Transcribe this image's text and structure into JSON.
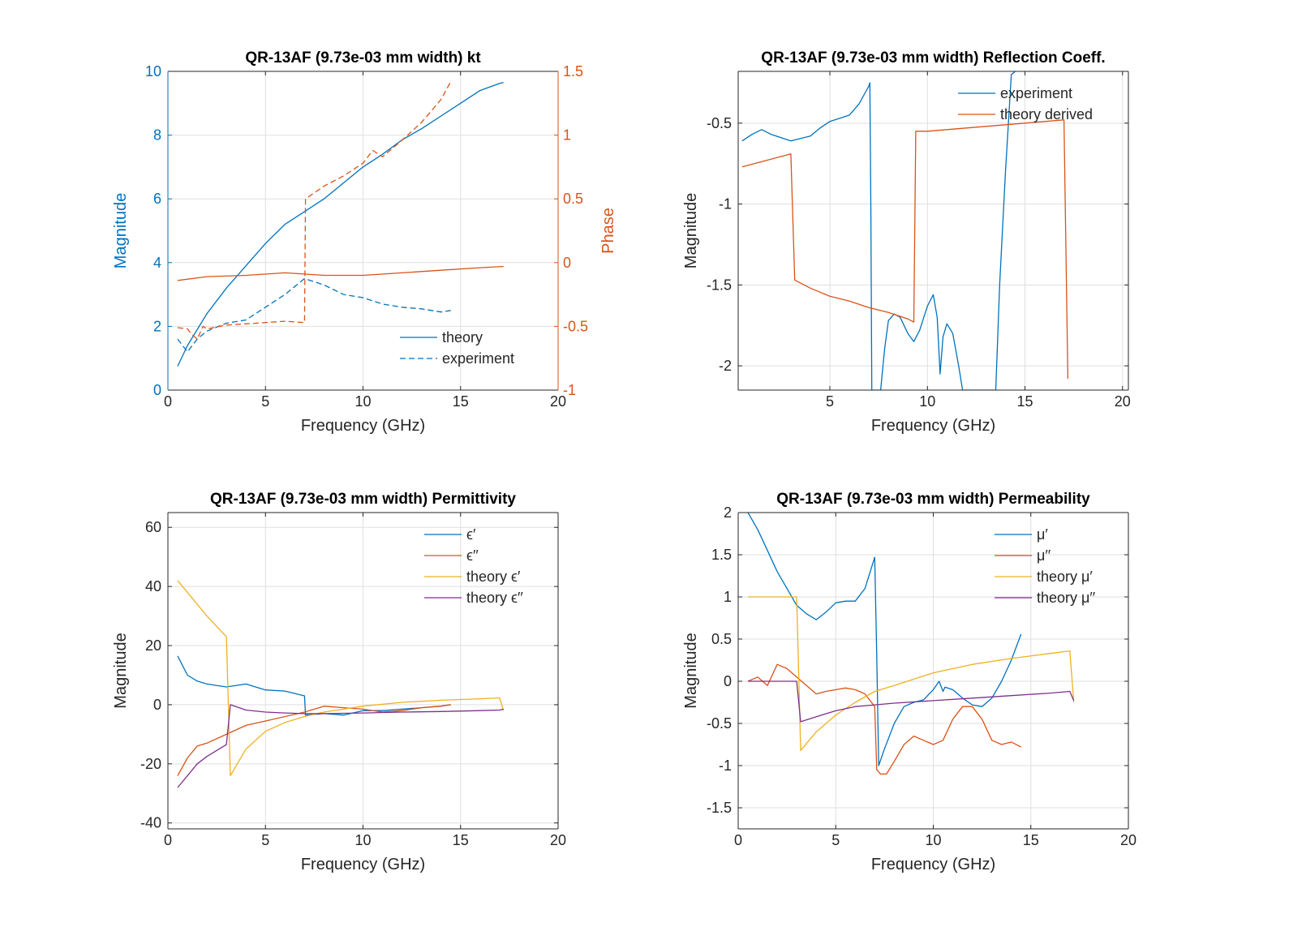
{
  "chart_data": [
    {
      "id": "kt",
      "type": "line",
      "title": "QR-13AF (9.73e-03 mm width) kt",
      "xlabel": "Frequency (GHz)",
      "ylabel": "Magnitude",
      "ylabel_right": "Phase",
      "xlim": [
        0,
        20
      ],
      "ylim": [
        0,
        10
      ],
      "ylim_right": [
        -1,
        1.5
      ],
      "xticks": [
        "0",
        "5",
        "10",
        "15",
        "20"
      ],
      "yticks": [
        "0",
        "2",
        "4",
        "6",
        "8",
        "10"
      ],
      "yticks_right": [
        "-1",
        "-0.5",
        "0",
        "0.5",
        "1",
        "1.5"
      ],
      "grid": true,
      "legend": "bottom-right",
      "legend_entries": [
        "theory",
        "experiment"
      ],
      "series": [
        {
          "name": "theory",
          "axis": "left",
          "color": "#0072BD",
          "style": "solid",
          "x": [
            0.5,
            1,
            2,
            3,
            4,
            5,
            6,
            7,
            8,
            9,
            10,
            11,
            12,
            13,
            14,
            15,
            16,
            17,
            17.2
          ],
          "y": [
            0.75,
            1.4,
            2.4,
            3.2,
            3.9,
            4.6,
            5.2,
            5.6,
            6.0,
            6.5,
            7.0,
            7.4,
            7.85,
            8.2,
            8.6,
            9.0,
            9.4,
            9.62,
            9.65
          ]
        },
        {
          "name": "theory",
          "axis": "right",
          "color": "#D95319",
          "style": "solid",
          "x": [
            0.5,
            2,
            4,
            6,
            7,
            8,
            10,
            12,
            14,
            16,
            17.2
          ],
          "y": [
            -0.14,
            -0.11,
            -0.1,
            -0.08,
            -0.09,
            -0.1,
            -0.1,
            -0.08,
            -0.06,
            -0.04,
            -0.03
          ]
        },
        {
          "name": "experiment",
          "axis": "left",
          "color": "#0072BD",
          "style": "dashed",
          "x": [
            0.5,
            1,
            1.5,
            2,
            3,
            4,
            5,
            6,
            7,
            8,
            9,
            10,
            11,
            12,
            13,
            14,
            14.5
          ],
          "y": [
            1.6,
            1.2,
            1.6,
            1.85,
            2.1,
            2.2,
            2.6,
            3.0,
            3.5,
            3.3,
            3.0,
            2.9,
            2.7,
            2.6,
            2.55,
            2.45,
            2.5
          ]
        },
        {
          "name": "experiment",
          "axis": "right",
          "color": "#D95319",
          "style": "dashed",
          "x": [
            0.5,
            1,
            1.2,
            1.5,
            1.8,
            2,
            3,
            4,
            5,
            6,
            7,
            7.05,
            8,
            9,
            10,
            10.5,
            11,
            12,
            13,
            14,
            14.5
          ],
          "y": [
            -0.51,
            -0.52,
            -0.56,
            -0.6,
            -0.5,
            -0.52,
            -0.49,
            -0.48,
            -0.47,
            -0.46,
            -0.47,
            0.5,
            0.6,
            0.68,
            0.78,
            0.88,
            0.83,
            0.96,
            1.1,
            1.28,
            1.42
          ]
        }
      ]
    },
    {
      "id": "refl",
      "type": "line",
      "title": "QR-13AF (9.73e-03 mm width) Reflection Coeff.",
      "xlabel": "Frequency (GHz)",
      "ylabel": "Magnitude",
      "xlim": [
        0.3,
        20.3
      ],
      "ylim": [
        -2.15,
        -0.18
      ],
      "xticks": [
        "5",
        "10",
        "15",
        "20"
      ],
      "yticks": [
        "-2",
        "-1.5",
        "-1",
        "-0.5"
      ],
      "grid": true,
      "legend": "top-right",
      "legend_entries": [
        "experiment",
        "theory derived"
      ],
      "series": [
        {
          "name": "experiment",
          "color": "#0072BD",
          "style": "solid",
          "x": [
            0.5,
            1,
            1.5,
            2,
            3,
            4,
            4.5,
            5,
            5.5,
            6,
            6.5,
            7,
            7.05,
            7.1,
            7.15,
            7.3,
            7.6,
            7.8,
            8,
            8.3,
            8.6,
            9,
            9.3,
            9.6,
            10,
            10.3,
            10.5,
            10.65,
            10.8,
            11,
            11.3,
            11.6,
            11.8,
            13.5,
            13.7,
            14.0,
            14.3,
            14.5
          ],
          "y": [
            -0.61,
            -0.57,
            -0.54,
            -0.57,
            -0.61,
            -0.58,
            -0.53,
            -0.49,
            -0.47,
            -0.45,
            -0.38,
            -0.27,
            -0.25,
            -1.0,
            -2.15,
            -2.15,
            -2.15,
            -1.9,
            -1.72,
            -1.68,
            -1.7,
            -1.8,
            -1.85,
            -1.78,
            -1.63,
            -1.56,
            -1.7,
            -2.05,
            -1.82,
            -1.74,
            -1.8,
            -2.0,
            -2.15,
            -2.15,
            -1.5,
            -0.8,
            -0.2,
            -0.18
          ]
        },
        {
          "name": "theory derived",
          "color": "#D95319",
          "style": "solid",
          "x": [
            0.5,
            3.0,
            3.2,
            4,
            5,
            6,
            7,
            8,
            9,
            9.3,
            9.4,
            10,
            12,
            14,
            16,
            17.0,
            17.2
          ],
          "y": [
            -0.77,
            -0.69,
            -1.47,
            -1.52,
            -1.57,
            -1.6,
            -1.64,
            -1.67,
            -1.71,
            -1.73,
            -0.55,
            -0.55,
            -0.53,
            -0.51,
            -0.49,
            -0.48,
            -2.08
          ]
        }
      ]
    },
    {
      "id": "eps",
      "type": "line",
      "title": "QR-13AF (9.73e-03 mm width) Permittivity",
      "xlabel": "Frequency (GHz)",
      "ylabel": "Magnitude",
      "xlim": [
        0,
        20
      ],
      "ylim": [
        -42,
        65
      ],
      "xticks": [
        "0",
        "5",
        "10",
        "15",
        "20"
      ],
      "yticks": [
        "-40",
        "-20",
        "0",
        "20",
        "40",
        "60"
      ],
      "grid": true,
      "legend": "top-right",
      "legend_entries": [
        "ϵ′",
        "ϵ′′",
        "theory ϵ′",
        "theory ϵ′′"
      ],
      "series": [
        {
          "name": "ϵ′",
          "color": "#0072BD",
          "style": "solid",
          "x": [
            0.5,
            1,
            1.5,
            2,
            3,
            4,
            5,
            6,
            7,
            7.05,
            8,
            9,
            10,
            11,
            12,
            13,
            14,
            14.5
          ],
          "y": [
            16.5,
            10,
            8,
            7,
            6,
            7,
            5,
            4.6,
            3,
            -3.5,
            -3,
            -3.5,
            -2,
            -2,
            -1.5,
            -1,
            -0.5,
            0
          ]
        },
        {
          "name": "ϵ′′",
          "color": "#D95319",
          "style": "solid",
          "x": [
            0.5,
            1,
            1.5,
            2,
            3,
            4,
            5,
            6,
            7,
            8,
            9,
            10,
            11,
            12,
            13,
            14,
            14.5
          ],
          "y": [
            -24,
            -18,
            -14,
            -13,
            -10,
            -7,
            -5.5,
            -4,
            -2.5,
            -0.5,
            -1,
            -1.5,
            -2.5,
            -2,
            -1,
            -0.5,
            0
          ]
        },
        {
          "name": "theory ϵ′",
          "color": "#EDB120",
          "style": "solid",
          "x": [
            0.5,
            1,
            2,
            3.0,
            3.2,
            4,
            5,
            6,
            7,
            8,
            10,
            12,
            14,
            16,
            17.0,
            17.2
          ],
          "y": [
            42,
            38,
            30,
            23,
            -24,
            -15,
            -9,
            -6,
            -4,
            -2.5,
            -0.5,
            0.8,
            1.5,
            2,
            2.3,
            -2
          ]
        },
        {
          "name": "theory ϵ′′",
          "color": "#7E2F8E",
          "style": "solid",
          "x": [
            0.5,
            1,
            1.5,
            2,
            3.0,
            3.2,
            4,
            5,
            6,
            7,
            8,
            10,
            12,
            14,
            16,
            17.0,
            17.2
          ],
          "y": [
            -28,
            -24,
            -20,
            -17.5,
            -13.5,
            0,
            -1.8,
            -2.5,
            -2.8,
            -3,
            -3,
            -2.8,
            -2.5,
            -2.3,
            -2,
            -1.8,
            -1.5
          ]
        }
      ]
    },
    {
      "id": "mu",
      "type": "line",
      "title": "QR-13AF (9.73e-03 mm width) Permeability",
      "xlabel": "Frequency (GHz)",
      "ylabel": "Magnitude",
      "xlim": [
        0,
        20
      ],
      "ylim": [
        -1.75,
        2
      ],
      "xticks": [
        "0",
        "5",
        "10",
        "15",
        "20"
      ],
      "yticks": [
        "-1.5",
        "-1",
        "-0.5",
        "0",
        "0.5",
        "1",
        "1.5",
        "2"
      ],
      "grid": true,
      "legend": "top-right",
      "legend_entries": [
        "μ′",
        "μ′′",
        "theory μ′",
        "theory μ′′"
      ],
      "series": [
        {
          "name": "μ′",
          "color": "#0072BD",
          "style": "solid",
          "x": [
            0.5,
            1,
            1.5,
            2,
            2.5,
            3,
            3.5,
            4,
            4.5,
            5,
            5.5,
            6,
            6.5,
            7,
            7.1,
            7.2,
            7.5,
            8,
            8.5,
            9,
            9.5,
            10,
            10.3,
            10.5,
            10.6,
            11,
            11.5,
            12,
            12.5,
            13,
            13.5,
            14,
            14.5
          ],
          "y": [
            2.0,
            1.8,
            1.55,
            1.3,
            1.1,
            0.9,
            0.8,
            0.73,
            0.82,
            0.93,
            0.95,
            0.95,
            1.1,
            1.47,
            0.3,
            -1.0,
            -0.8,
            -0.5,
            -0.3,
            -0.25,
            -0.22,
            -0.1,
            0,
            -0.12,
            -0.07,
            -0.1,
            -0.2,
            -0.28,
            -0.3,
            -0.2,
            0,
            0.25,
            0.56
          ]
        },
        {
          "name": "μ′′",
          "color": "#D95319",
          "style": "solid",
          "x": [
            0.5,
            1,
            1.5,
            2,
            2.5,
            3,
            3.5,
            4,
            4.5,
            5,
            5.5,
            6,
            6.5,
            7,
            7.1,
            7.3,
            7.6,
            8,
            8.5,
            9,
            9.5,
            10,
            10.5,
            11,
            11.5,
            12,
            12.5,
            13,
            13.5,
            14,
            14.5
          ],
          "y": [
            0,
            0.05,
            -0.05,
            0.2,
            0.15,
            0.05,
            -0.05,
            -0.15,
            -0.12,
            -0.1,
            -0.08,
            -0.1,
            -0.15,
            -0.3,
            -1.05,
            -1.1,
            -1.1,
            -0.95,
            -0.75,
            -0.65,
            -0.7,
            -0.75,
            -0.7,
            -0.45,
            -0.3,
            -0.3,
            -0.45,
            -0.7,
            -0.75,
            -0.72,
            -0.78
          ]
        },
        {
          "name": "theory μ′",
          "color": "#EDB120",
          "style": "solid",
          "x": [
            0.5,
            3.0,
            3.2,
            4,
            5,
            6,
            7,
            8,
            10,
            12,
            14,
            16,
            17.0,
            17.2
          ],
          "y": [
            1.0,
            1.0,
            -0.82,
            -0.6,
            -0.4,
            -0.25,
            -0.12,
            -0.05,
            0.1,
            0.2,
            0.27,
            0.33,
            0.36,
            -0.25
          ]
        },
        {
          "name": "theory μ′′",
          "color": "#7E2F8E",
          "style": "solid",
          "x": [
            0.5,
            3.0,
            3.2,
            4,
            5,
            6,
            7,
            8,
            10,
            12,
            14,
            16,
            17.0,
            17.2
          ],
          "y": [
            0,
            0,
            -0.48,
            -0.42,
            -0.35,
            -0.3,
            -0.28,
            -0.26,
            -0.23,
            -0.2,
            -0.17,
            -0.14,
            -0.12,
            -0.23
          ]
        }
      ]
    }
  ]
}
